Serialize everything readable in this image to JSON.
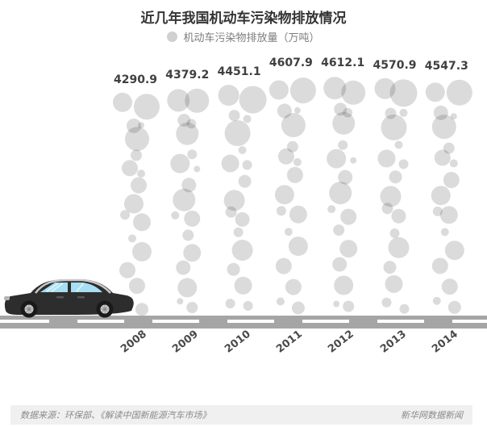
{
  "header": {
    "title": "近几年我国机动车污染物排放情况",
    "legend_label": "机动车污染物排放量（万吨）"
  },
  "footer": {
    "source": "数据来源：环保部、《解读中国新能源汽车市场》",
    "credit": "新华网数据新闻"
  },
  "palette": {
    "title_text": "#333333",
    "legend_text": "#7d7d7d",
    "legend_dot": "#d0d0d0",
    "value_text": "#404040",
    "year_text": "#4a4a4a",
    "bubble_fill": "#d9d9d9",
    "road": "#a5a5a5",
    "car_body": "#2d2d2d",
    "car_window": "#a7def2",
    "footer_bg": "#f0f0f0",
    "footer_text": "#8a8a8a"
  },
  "chart_data": {
    "type": "bar",
    "style": "smoke-bubble-columns",
    "title": "近几年我国机动车污染物排放情况",
    "series_label": "机动车污染物排放量（万吨）",
    "unit": "万吨",
    "categories": [
      "2008",
      "2009",
      "2010",
      "2011",
      "2012",
      "2013",
      "2014"
    ],
    "values": [
      4290.9,
      4379.2,
      4451.1,
      4607.9,
      4612.1,
      4570.9,
      4547.3
    ],
    "value_labels": [
      "4290.9",
      "4379.2",
      "4451.1",
      "4607.9",
      "4612.1",
      "4570.9",
      "4547.3"
    ],
    "xlabel": "",
    "ylabel": "",
    "baseline": "road",
    "legend_position": "top-center",
    "grid": false
  }
}
